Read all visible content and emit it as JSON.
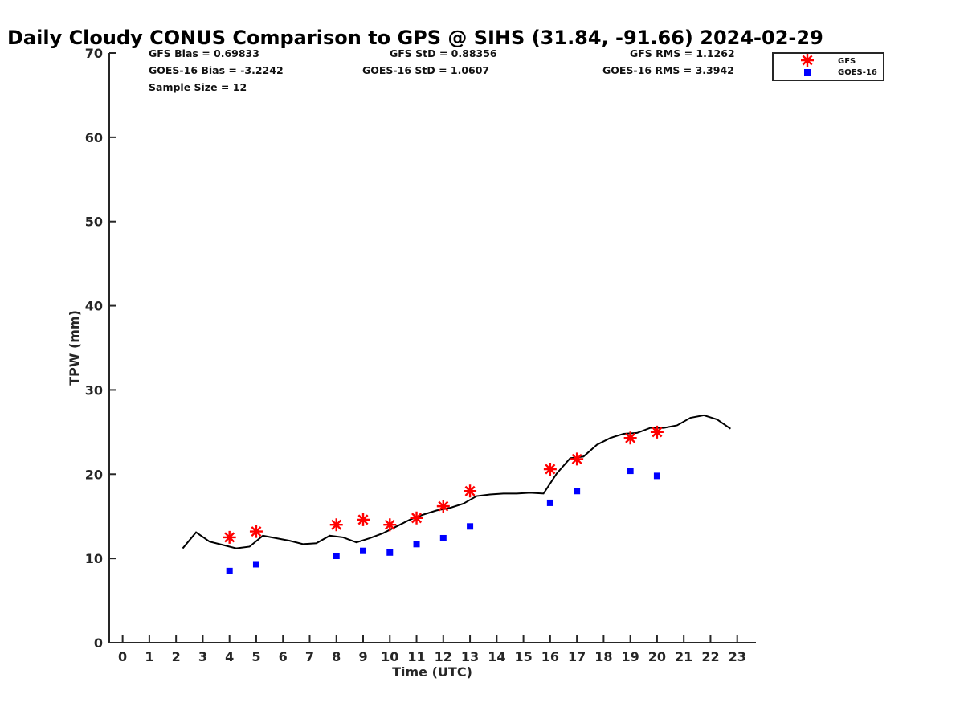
{
  "chart_data": {
    "type": "scatter",
    "title": "Daily Cloudy CONUS Comparison to GPS @ SIHS (31.84, -91.66) 2024-02-29",
    "xlabel": "Time (UTC)",
    "ylabel": "TPW (mm)",
    "xlim": [
      -0.5,
      23.7
    ],
    "ylim": [
      0,
      70
    ],
    "xticks": [
      0,
      1,
      2,
      3,
      4,
      5,
      6,
      7,
      8,
      9,
      10,
      11,
      12,
      13,
      14,
      15,
      16,
      17,
      18,
      19,
      20,
      21,
      22,
      23
    ],
    "yticks": [
      0,
      10,
      20,
      30,
      40,
      50,
      60,
      70
    ],
    "grid": false,
    "legend_position": "top-right",
    "stats": {
      "gfs_bias": "GFS Bias = 0.69833",
      "gfs_std": "GFS StD = 0.88356",
      "gfs_rms": "GFS RMS = 1.1262",
      "goes_bias": "GOES-16 Bias = -3.2242",
      "goes_std": "GOES-16 StD = 1.0607",
      "goes_rms": "GOES-16 RMS = 3.3942",
      "sample_size": "Sample Size = 12"
    },
    "series": [
      {
        "name": "",
        "kind": "line",
        "color": "#000000",
        "x": [
          2.25,
          2.75,
          3.25,
          3.75,
          4.25,
          4.75,
          5.25,
          5.75,
          6.25,
          6.75,
          7.25,
          7.75,
          8.25,
          8.75,
          9.25,
          9.75,
          10.25,
          10.75,
          11.25,
          11.75,
          12.25,
          12.75,
          13.25,
          13.75,
          14.25,
          14.75,
          15.25,
          15.75,
          16.25,
          16.75,
          17.25,
          17.75,
          18.25,
          18.75,
          19.25,
          19.75,
          20.25,
          20.75,
          21.25,
          21.75,
          22.25,
          22.75
        ],
        "y": [
          11.2,
          13.1,
          12.0,
          11.6,
          11.2,
          11.4,
          12.7,
          12.4,
          12.1,
          11.7,
          11.8,
          12.7,
          12.5,
          11.9,
          12.4,
          13.0,
          13.8,
          14.6,
          15.2,
          15.7,
          16.0,
          16.5,
          17.4,
          17.6,
          17.7,
          17.7,
          17.8,
          17.7,
          20.1,
          21.9,
          22.1,
          23.5,
          24.3,
          24.8,
          24.9,
          25.5,
          25.5,
          25.8,
          26.7,
          27.0,
          26.5,
          25.4
        ]
      },
      {
        "name": "GFS",
        "kind": "star",
        "color": "#ff0000",
        "x": [
          4,
          5,
          8,
          9,
          10,
          11,
          12,
          13,
          16,
          17,
          19,
          20
        ],
        "y": [
          12.5,
          13.2,
          14.0,
          14.6,
          14.0,
          14.8,
          16.2,
          18.0,
          20.6,
          21.8,
          24.3,
          25.0
        ]
      },
      {
        "name": "GOES-16",
        "kind": "square",
        "color": "#0000ff",
        "x": [
          4,
          5,
          8,
          9,
          10,
          11,
          12,
          13,
          16,
          17,
          19,
          20
        ],
        "y": [
          8.5,
          9.3,
          10.3,
          10.9,
          10.7,
          11.7,
          12.4,
          13.8,
          16.6,
          18.0,
          20.4,
          19.8
        ]
      }
    ]
  }
}
